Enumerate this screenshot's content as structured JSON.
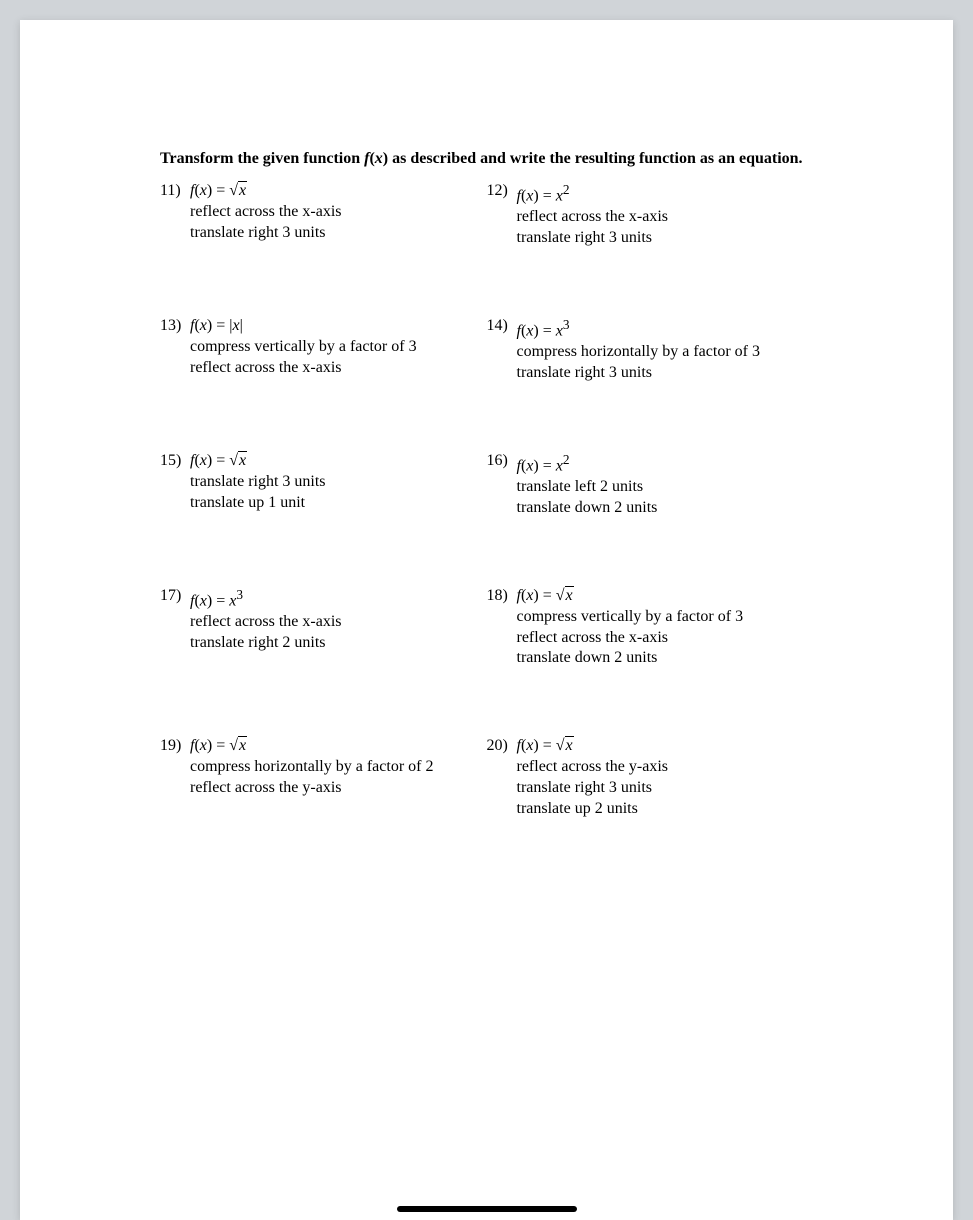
{
  "title": "Transform the given function f(x) as described and write the resulting function as an equation.",
  "problems": [
    {
      "num": "11)",
      "func_type": "sqrt",
      "transforms": [
        "reflect across the x-axis",
        "translate right 3 units"
      ]
    },
    {
      "num": "12)",
      "func_type": "x2",
      "transforms": [
        "reflect across the x-axis",
        "translate right 3 units"
      ]
    },
    {
      "num": "13)",
      "func_type": "abs",
      "transforms": [
        "compress vertically by a factor of 3",
        "reflect across the x-axis"
      ]
    },
    {
      "num": "14)",
      "func_type": "x3",
      "transforms": [
        "compress horizontally by a factor of 3",
        "translate right 3 units"
      ]
    },
    {
      "num": "15)",
      "func_type": "sqrt",
      "transforms": [
        "translate right 3 units",
        "translate up 1 unit"
      ]
    },
    {
      "num": "16)",
      "func_type": "x2",
      "transforms": [
        "translate left 2 units",
        "translate down 2 units"
      ]
    },
    {
      "num": "17)",
      "func_type": "x3",
      "transforms": [
        "reflect across the x-axis",
        "translate right 2 units"
      ]
    },
    {
      "num": "18)",
      "func_type": "sqrt",
      "transforms": [
        "compress vertically by a factor of 3",
        "reflect across the x-axis",
        "translate down 2 units"
      ]
    },
    {
      "num": "19)",
      "func_type": "sqrt",
      "transforms": [
        "compress horizontally by a factor of 2",
        "reflect across the y-axis"
      ]
    },
    {
      "num": "20)",
      "func_type": "sqrt",
      "transforms": [
        "reflect across the y-axis",
        "translate right 3 units",
        "translate up 2 units"
      ]
    }
  ],
  "func_label": {
    "prefix": "f",
    "open": "(",
    "var": "x",
    "close": ")",
    "eq": " = "
  },
  "colors": {
    "page_bg": "#ffffff",
    "body_bg": "#d0d4d8",
    "text": "#000000",
    "scrollbar": "#000000"
  },
  "fonts": {
    "family": "Times New Roman",
    "title_size_pt": 12,
    "body_size_pt": 12,
    "title_weight": "bold"
  }
}
